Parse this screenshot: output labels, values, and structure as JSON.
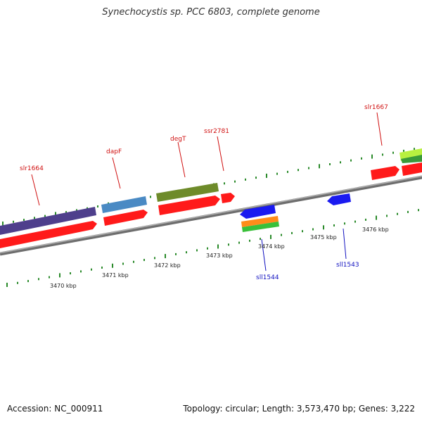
{
  "title": "Synechocystis sp. PCC 6803, complete genome",
  "footer": {
    "accession": "Accession: NC_000911",
    "stats": "Topology: circular; Length: 3,573,470 bp; Genes: 3,222"
  },
  "colors": {
    "backbone": "#8c8c8c",
    "cds": "#ff1a1a",
    "forward_label": "#d01010",
    "reverse_label": "#1010c0",
    "tick": "#2a8a2a",
    "reverse_cds": "#1a1af0"
  },
  "scale_labels": [
    "3470 kbp",
    "3471 kbp",
    "3472 kbp",
    "3473 kbp",
    "3474 kbp",
    "3475 kbp",
    "3476 kbp"
  ],
  "genes": {
    "forward": [
      "slr1664",
      "dapF",
      "degT",
      "ssr2781",
      "slr1667"
    ],
    "reverse": [
      "sll1544",
      "sll1543"
    ]
  }
}
